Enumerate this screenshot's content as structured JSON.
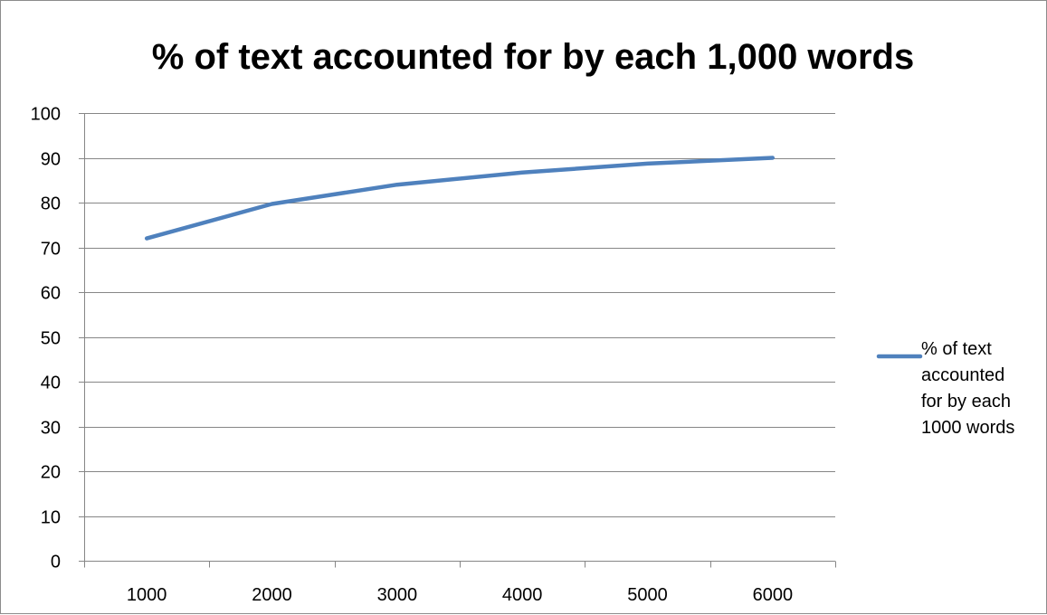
{
  "chart_data": {
    "type": "line",
    "title": "% of text accounted for by each 1,000 words",
    "xlabel": "",
    "ylabel": "",
    "categories": [
      "1000",
      "2000",
      "3000",
      "4000",
      "5000",
      "6000"
    ],
    "series": [
      {
        "name": "% of text accounted for by each 1000 words",
        "values": [
          72,
          79.7,
          84,
          86.7,
          88.7,
          90
        ],
        "color": "#4F81BD"
      }
    ],
    "ylim": [
      0,
      100
    ],
    "yticks": [
      "0",
      "10",
      "20",
      "30",
      "40",
      "50",
      "60",
      "70",
      "80",
      "90",
      "100"
    ],
    "grid": "horizontal",
    "legend_position": "right",
    "legend_lines": [
      "% of text",
      "accounted",
      "for by each",
      "1000 words"
    ],
    "colors": {
      "gridline": "#868686",
      "axis": "#868686",
      "frame": "#8c8c8c"
    }
  }
}
